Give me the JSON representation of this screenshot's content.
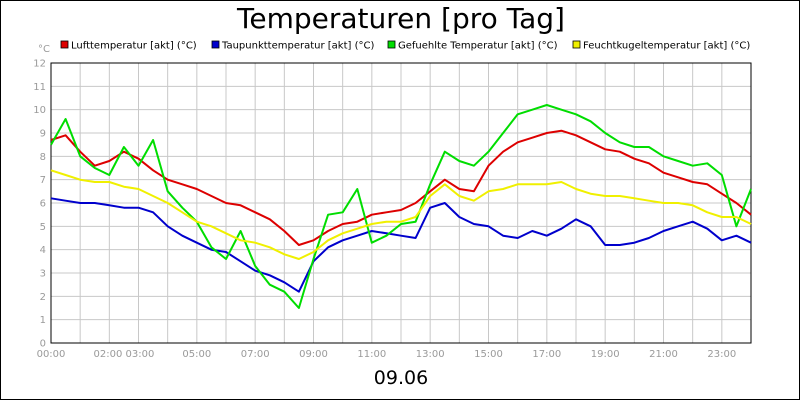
{
  "chart_data": {
    "type": "line",
    "title": "Temperaturen [pro Tag]",
    "date_label": "09.06",
    "unit_label": "°C",
    "ylim": [
      0,
      12
    ],
    "yticks": [
      0,
      1,
      2,
      3,
      4,
      5,
      6,
      7,
      8,
      9,
      10,
      11,
      12
    ],
    "xlim": [
      0,
      24
    ],
    "xticks": [
      {
        "t": 0,
        "label": "00:00"
      },
      {
        "t": 2.5,
        "label": "02:00 03:00"
      },
      {
        "t": 5,
        "label": "05:00"
      },
      {
        "t": 7,
        "label": "07:00"
      },
      {
        "t": 9,
        "label": "09:00"
      },
      {
        "t": 11,
        "label": "11:00"
      },
      {
        "t": 13,
        "label": "13:00"
      },
      {
        "t": 15,
        "label": "15:00"
      },
      {
        "t": 17,
        "label": "17:00"
      },
      {
        "t": 19,
        "label": "19:00"
      },
      {
        "t": 21,
        "label": "21:00"
      },
      {
        "t": 23,
        "label": "23:00"
      }
    ],
    "grid": true,
    "legend_position": "top",
    "series": [
      {
        "name": "Lufttemperatur [akt] (°C)",
        "color": "#dd0000",
        "x": [
          0,
          0.5,
          1,
          1.5,
          2,
          2.5,
          3,
          3.5,
          4,
          4.5,
          5,
          5.5,
          6,
          6.5,
          7,
          7.5,
          8,
          8.5,
          9,
          9.5,
          10,
          10.5,
          11,
          11.5,
          12,
          12.5,
          13,
          13.5,
          14,
          14.5,
          15,
          15.5,
          16,
          16.5,
          17,
          17.5,
          18,
          18.5,
          19,
          19.5,
          20,
          20.5,
          21,
          21.5,
          22,
          22.5,
          23,
          23.5,
          24
        ],
        "values": [
          8.7,
          8.9,
          8.2,
          7.6,
          7.8,
          8.2,
          7.9,
          7.4,
          7.0,
          6.8,
          6.6,
          6.3,
          6.0,
          5.9,
          5.6,
          5.3,
          4.8,
          4.2,
          4.4,
          4.8,
          5.1,
          5.2,
          5.5,
          5.6,
          5.7,
          6.0,
          6.5,
          7.0,
          6.6,
          6.5,
          7.6,
          8.2,
          8.6,
          8.8,
          9.0,
          9.1,
          8.9,
          8.6,
          8.3,
          8.2,
          7.9,
          7.7,
          7.3,
          7.1,
          6.9,
          6.8,
          6.4,
          6.0,
          5.5
        ]
      },
      {
        "name": "Taupunkttemperatur [akt] (°C)",
        "color": "#0000cc",
        "x": [
          0,
          0.5,
          1,
          1.5,
          2,
          2.5,
          3,
          3.5,
          4,
          4.5,
          5,
          5.5,
          6,
          6.5,
          7,
          7.5,
          8,
          8.5,
          9,
          9.5,
          10,
          10.5,
          11,
          11.5,
          12,
          12.5,
          13,
          13.5,
          14,
          14.5,
          15,
          15.5,
          16,
          16.5,
          17,
          17.5,
          18,
          18.5,
          19,
          19.5,
          20,
          20.5,
          21,
          21.5,
          22,
          22.5,
          23,
          23.5,
          24
        ],
        "values": [
          6.2,
          6.1,
          6.0,
          6.0,
          5.9,
          5.8,
          5.8,
          5.6,
          5.0,
          4.6,
          4.3,
          4.0,
          3.9,
          3.5,
          3.1,
          2.9,
          2.6,
          2.2,
          3.5,
          4.1,
          4.4,
          4.6,
          4.8,
          4.7,
          4.6,
          4.5,
          5.8,
          6.0,
          5.4,
          5.1,
          5.0,
          4.6,
          4.5,
          4.8,
          4.6,
          4.9,
          5.3,
          5.0,
          4.2,
          4.2,
          4.3,
          4.5,
          4.8,
          5.0,
          5.2,
          4.9,
          4.4,
          4.6,
          4.3
        ]
      },
      {
        "name": "Gefuehlte Temperatur [akt] (°C)",
        "color": "#00dd00",
        "x": [
          0,
          0.5,
          1,
          1.5,
          2,
          2.5,
          3,
          3.5,
          4,
          4.5,
          5,
          5.5,
          6,
          6.5,
          7,
          7.5,
          8,
          8.5,
          9,
          9.5,
          10,
          10.5,
          11,
          11.5,
          12,
          12.5,
          13,
          13.5,
          14,
          14.5,
          15,
          15.5,
          16,
          16.5,
          17,
          17.5,
          18,
          18.5,
          19,
          19.5,
          20,
          20.5,
          21,
          21.5,
          22,
          22.5,
          23,
          23.5,
          24
        ],
        "values": [
          8.5,
          9.6,
          8.0,
          7.5,
          7.2,
          8.4,
          7.6,
          8.7,
          6.5,
          5.8,
          5.2,
          4.1,
          3.6,
          4.8,
          3.3,
          2.5,
          2.2,
          1.5,
          3.6,
          5.5,
          5.6,
          6.6,
          4.3,
          4.6,
          5.1,
          5.2,
          6.8,
          8.2,
          7.8,
          7.6,
          8.2,
          9.0,
          9.8,
          10.0,
          10.2,
          10.0,
          9.8,
          9.5,
          9.0,
          8.6,
          8.4,
          8.4,
          8.0,
          7.8,
          7.6,
          7.7,
          7.2,
          5.0,
          6.6
        ]
      },
      {
        "name": "Feuchtkugeltemperatur [akt] (°C)",
        "color": "#f0f000",
        "x": [
          0,
          0.5,
          1,
          1.5,
          2,
          2.5,
          3,
          3.5,
          4,
          4.5,
          5,
          5.5,
          6,
          6.5,
          7,
          7.5,
          8,
          8.5,
          9,
          9.5,
          10,
          10.5,
          11,
          11.5,
          12,
          12.5,
          13,
          13.5,
          14,
          14.5,
          15,
          15.5,
          16,
          16.5,
          17,
          17.5,
          18,
          18.5,
          19,
          19.5,
          20,
          20.5,
          21,
          21.5,
          22,
          22.5,
          23,
          23.5,
          24
        ],
        "values": [
          7.4,
          7.2,
          7.0,
          6.9,
          6.9,
          6.7,
          6.6,
          6.3,
          6.0,
          5.6,
          5.2,
          5.0,
          4.7,
          4.4,
          4.3,
          4.1,
          3.8,
          3.6,
          3.9,
          4.4,
          4.7,
          4.9,
          5.1,
          5.2,
          5.2,
          5.4,
          6.3,
          6.8,
          6.3,
          6.1,
          6.5,
          6.6,
          6.8,
          6.8,
          6.8,
          6.9,
          6.6,
          6.4,
          6.3,
          6.3,
          6.2,
          6.1,
          6.0,
          6.0,
          5.9,
          5.6,
          5.4,
          5.4,
          5.1
        ]
      }
    ]
  }
}
